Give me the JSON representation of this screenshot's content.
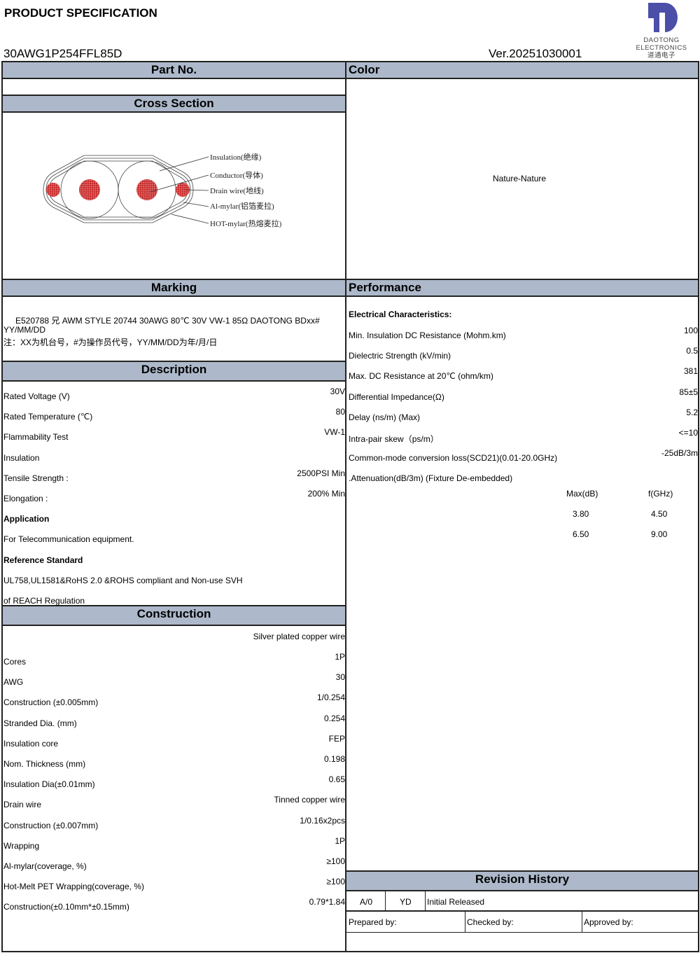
{
  "header": {
    "title": "PRODUCT SPECIFICATION",
    "part_number": "30AWG1P254FFL85D",
    "version": "Ver.20251030001",
    "logo": {
      "line1": "DAOTONG",
      "line2": "ELECTRONICS",
      "line3": "道通电子",
      "color": "#4b4fa8"
    }
  },
  "sections": {
    "part_no": "Part No.",
    "color": "Color",
    "cross_section": "Cross Section",
    "marking": "Marking",
    "performance": "Performance",
    "description": "Description",
    "construction": "Construction",
    "revision_history": "Revision History"
  },
  "color_value": "Nature-Nature",
  "cross_section_labels": [
    "Insulation(绝缘)",
    "Conductor(导体)",
    "Drain wire(地线)",
    "Al-mylar(铝箔麦拉)",
    "HOT-mylar(热熔麦拉)"
  ],
  "marking": {
    "line1": "E520788 兄 AWM STYLE 20744 30AWG 80℃ 30V VW-1 85Ω DAOTONG BDxx#",
    "line2": "YY/MM/DD",
    "note": "注：XX为机台号，#为操作员代号，YY/MM/DD为年/月/日"
  },
  "description": [
    {
      "label": "Rated Voltage (V)",
      "value": "30V"
    },
    {
      "label": "Rated Temperature (℃)",
      "value": "80"
    },
    {
      "label": "Flammability Test",
      "value": "VW-1"
    },
    {
      "label": "Insulation",
      "value": ""
    },
    {
      "label": "Tensile Strength :",
      "value": "2500PSI Min"
    },
    {
      "label": "Elongation :",
      "value": "200% Min"
    },
    {
      "label": "Application",
      "value": "",
      "bold": true
    },
    {
      "label": "For Telecommunication equipment.",
      "value": ""
    },
    {
      "label": "Reference Standard",
      "value": "",
      "bold": true
    },
    {
      "label": "UL758,UL1581&RoHS 2.0 &ROHS compliant and Non-use SVH",
      "value": ""
    },
    {
      "label": "of REACH Regulation",
      "value": ""
    }
  ],
  "construction": [
    {
      "label": "",
      "value": "Silver plated copper wire"
    },
    {
      "label": "Cores",
      "value": "1P"
    },
    {
      "label": "AWG",
      "value": "30"
    },
    {
      "label": "Construction (±0.005mm)",
      "value": "1/0.254"
    },
    {
      "label": "Stranded Dia. (mm)",
      "value": "0.254"
    },
    {
      "label": "Insulation core",
      "value": "FEP"
    },
    {
      "label": "Nom. Thickness (mm)",
      "value": "0.198"
    },
    {
      "label": "Insulation Dia(±0.01mm)",
      "value": "0.65"
    },
    {
      "label": "Drain wire",
      "value": "Tinned copper wire"
    },
    {
      "label": "Construction (±0.007mm)",
      "value": "1/0.16x2pcs"
    },
    {
      "label": "Wrapping",
      "value": "1P"
    },
    {
      "label": " Al-mylar(coverage, %)",
      "value": "≥100"
    },
    {
      "label": " Hot-Melt PET Wrapping(coverage, %)",
      "value": "≥100"
    },
    {
      "label": "Construction(±0.10mm*±0.15mm)",
      "value": "0.79*1.84"
    }
  ],
  "performance": {
    "heading": "Electrical Characteristics:",
    "rows": [
      {
        "label": "Min. Insulation DC Resistance (Mohm.km)",
        "value": "100"
      },
      {
        "label": "Dielectric Strength (kV/min)",
        "value": "0.5"
      },
      {
        "label": "Max. DC Resistance at 20℃ (ohm/km)",
        "value": "381"
      },
      {
        "label": "Differential Impedance(Ω)",
        "value": "85±5"
      },
      {
        "label": "Delay (ns/m)  (Max)",
        "value": "5.2"
      },
      {
        "label": "Intra-pair skew（ps/m）",
        "value": "<=10"
      },
      {
        "label": "Common-mode conversion loss(SCD21)(0.01-20.0GHz)",
        "value": "-25dB/3m"
      },
      {
        "label": ".Attenuation(dB/3m) (Fixture De-embedded)",
        "value": ""
      }
    ],
    "attenuation": {
      "headers": [
        "Max(dB)",
        "f(GHz)"
      ],
      "rows": [
        [
          "3.80",
          "4.50"
        ],
        [
          "6.50",
          "9.00"
        ]
      ]
    }
  },
  "revision": {
    "rev": "A/0",
    "by": "YD",
    "note": "Initial Released",
    "prepared": "Prepared by:",
    "checked": "Checked by:",
    "approved": "Approved by:"
  }
}
